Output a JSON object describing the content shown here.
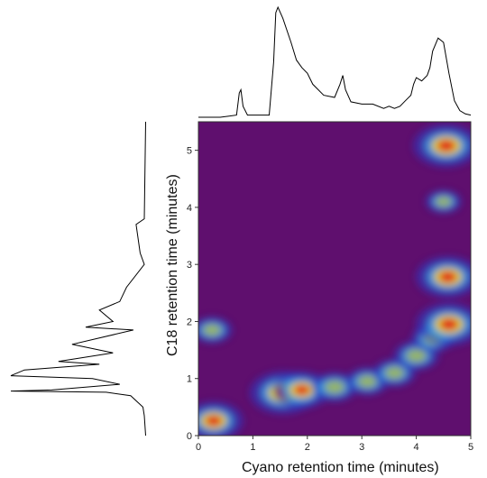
{
  "chart_data": {
    "type": "heatmap",
    "xlabel": "Cyano retention time (minutes)",
    "ylabel": "C18 retention time (minutes)",
    "xlim": [
      0,
      5
    ],
    "ylim": [
      0,
      5.5
    ],
    "x_ticks": [
      "0",
      "1",
      "2",
      "3",
      "4",
      "5"
    ],
    "y_ticks": [
      "0",
      "1",
      "2",
      "3",
      "4",
      "5"
    ],
    "grid": false,
    "colormap": [
      "#5a0a6e",
      "#2a3cc8",
      "#35b0e8",
      "#f0e000",
      "#e02020",
      "#c80000"
    ],
    "background_color": "#5f0f6e",
    "hotspots": [
      {
        "x": 0.28,
        "y": 0.26,
        "intensity": 0.85
      },
      {
        "x": 0.25,
        "y": 1.85,
        "intensity": 0.45
      },
      {
        "x": 1.55,
        "y": 0.75,
        "intensity": 1.0
      },
      {
        "x": 1.9,
        "y": 0.8,
        "intensity": 0.8
      },
      {
        "x": 2.5,
        "y": 0.85,
        "intensity": 0.55
      },
      {
        "x": 3.1,
        "y": 0.95,
        "intensity": 0.5
      },
      {
        "x": 3.6,
        "y": 1.1,
        "intensity": 0.5
      },
      {
        "x": 4.0,
        "y": 1.4,
        "intensity": 0.55
      },
      {
        "x": 4.3,
        "y": 1.7,
        "intensity": 0.5
      },
      {
        "x": 4.6,
        "y": 1.95,
        "intensity": 1.0
      },
      {
        "x": 4.58,
        "y": 2.78,
        "intensity": 0.95
      },
      {
        "x": 4.55,
        "y": 5.08,
        "intensity": 1.0
      },
      {
        "x": 4.5,
        "y": 4.1,
        "intensity": 0.35
      }
    ],
    "top_profile": {
      "x": [
        0.0,
        0.4,
        0.7,
        0.75,
        0.78,
        0.82,
        0.9,
        1.3,
        1.38,
        1.42,
        1.46,
        1.55,
        1.7,
        1.8,
        1.9,
        2.0,
        2.1,
        2.3,
        2.5,
        2.6,
        2.65,
        2.7,
        2.8,
        3.0,
        3.2,
        3.4,
        3.5,
        3.6,
        3.7,
        3.8,
        3.9,
        3.95,
        4.0,
        4.1,
        4.2,
        4.25,
        4.3,
        4.4,
        4.5,
        4.6,
        4.7,
        4.8,
        4.9,
        5.0
      ],
      "y": [
        0.0,
        0.0,
        0.02,
        0.22,
        0.25,
        0.1,
        0.02,
        0.02,
        0.5,
        0.95,
        1.0,
        0.9,
        0.68,
        0.52,
        0.45,
        0.4,
        0.3,
        0.2,
        0.18,
        0.3,
        0.38,
        0.25,
        0.14,
        0.12,
        0.12,
        0.08,
        0.1,
        0.08,
        0.1,
        0.15,
        0.2,
        0.3,
        0.36,
        0.33,
        0.38,
        0.45,
        0.6,
        0.72,
        0.68,
        0.4,
        0.15,
        0.06,
        0.03,
        0.02
      ]
    },
    "side_profile": {
      "y": [
        5.5,
        3.8,
        3.7,
        3.2,
        3.0,
        2.6,
        2.35,
        2.2,
        2.0,
        1.9,
        1.85,
        1.6,
        1.45,
        1.3,
        1.25,
        1.15,
        1.05,
        1.0,
        0.9,
        0.8,
        0.78,
        0.76,
        0.7,
        0.5,
        0.35,
        0.0
      ],
      "v": [
        0.01,
        0.02,
        0.08,
        0.05,
        0.02,
        0.15,
        0.2,
        0.35,
        0.25,
        0.45,
        0.1,
        0.55,
        0.25,
        0.65,
        0.35,
        0.9,
        1.0,
        0.4,
        0.2,
        0.7,
        1.0,
        0.3,
        0.12,
        0.03,
        0.02,
        0.01
      ]
    }
  }
}
